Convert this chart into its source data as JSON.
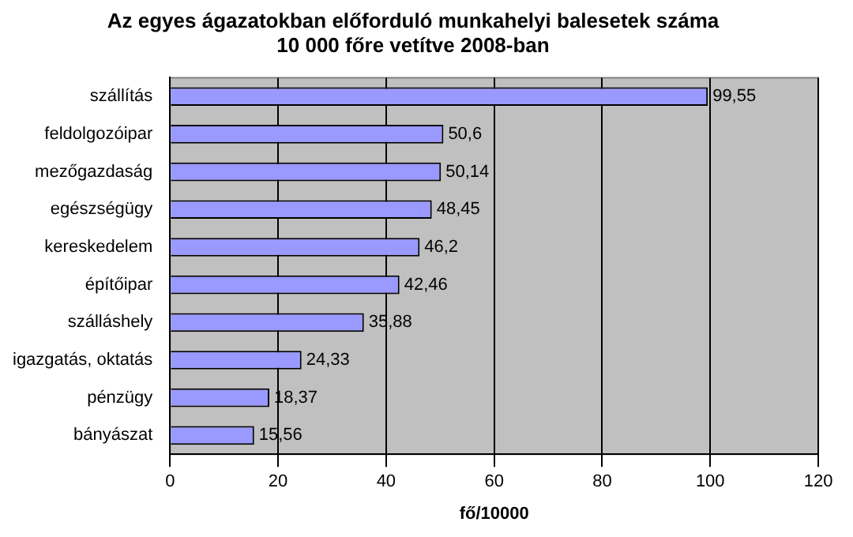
{
  "chart_data": {
    "type": "bar",
    "orientation": "horizontal",
    "title": "Az egyes ágazatokban előforduló munkahelyi balesetek száma\n10 000 főre vetítve 2008-ban",
    "xlabel": "fő/10000",
    "categories": [
      "szállítás",
      "feldolgozóipar",
      "mezőgazdaság",
      "egészségügy",
      "kereskedelem",
      "építőipar",
      "szálláshely",
      "igazgatás, oktatás",
      "pénzügy",
      "bányászat"
    ],
    "values": [
      99.55,
      50.6,
      50.14,
      48.45,
      46.2,
      42.46,
      35.88,
      24.33,
      18.37,
      15.56
    ],
    "color": "#9999ff",
    "xlim": [
      0,
      120
    ],
    "xticks": [
      0,
      20,
      40,
      60,
      80,
      100,
      120
    ],
    "value_labels": [
      "99,55",
      "50,6",
      "50,14",
      "48,45",
      "46,2",
      "42,46",
      "35,88",
      "24,33",
      "18,37",
      "15,56"
    ],
    "grid": "x",
    "legend": false
  }
}
